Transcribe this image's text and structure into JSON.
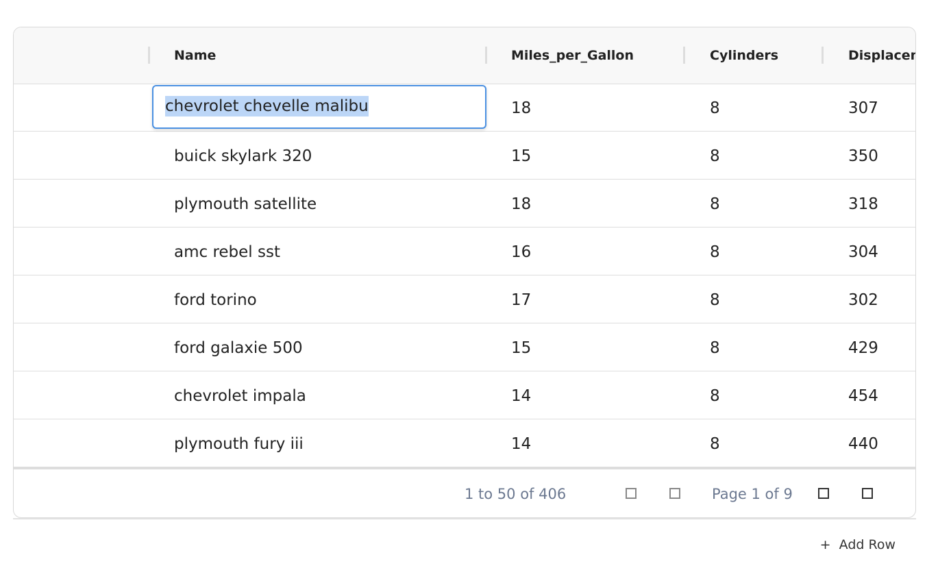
{
  "columns": [
    "Name",
    "Miles_per_Gallon",
    "Cylinders",
    "Displacement"
  ],
  "editing_value": "chevrolet chevelle malibu",
  "rows": [
    [
      "chevrolet chevelle malibu",
      "18",
      "8",
      "307"
    ],
    [
      "buick skylark 320",
      "15",
      "8",
      "350"
    ],
    [
      "plymouth satellite",
      "18",
      "8",
      "318"
    ],
    [
      "amc rebel sst",
      "16",
      "8",
      "304"
    ],
    [
      "ford torino",
      "17",
      "8",
      "302"
    ],
    [
      "ford galaxie 500",
      "15",
      "8",
      "429"
    ],
    [
      "chevrolet impala",
      "14",
      "8",
      "454"
    ],
    [
      "plymouth fury iii",
      "14",
      "8",
      "440"
    ]
  ],
  "pagination": {
    "range": "1 to 50 of 406",
    "page": "Page 1 of 9"
  },
  "add_row": {
    "icon": "+",
    "label": "Add Row"
  },
  "colors": {
    "accent": "#4a90e2",
    "selection": "#bcd6f7",
    "muted": "#6b7890"
  }
}
